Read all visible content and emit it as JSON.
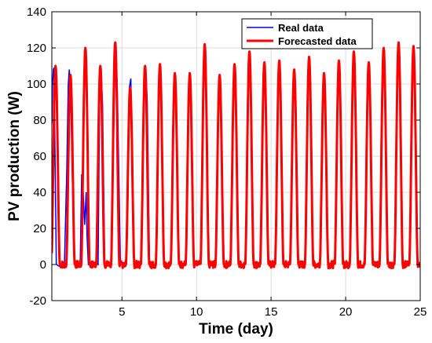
{
  "chart_data": {
    "type": "line",
    "title": "",
    "xlabel": "Time (day)",
    "ylabel": "PV production (W)",
    "xlim": [
      0.3,
      25
    ],
    "ylim": [
      -20,
      140
    ],
    "x_ticks": [
      5,
      10,
      15,
      20,
      25
    ],
    "y_ticks": [
      -20,
      0,
      20,
      40,
      60,
      80,
      100,
      120,
      140
    ],
    "grid": true,
    "legend_position": "top-right",
    "series": [
      {
        "name": "Real data",
        "color": "#0000ff",
        "points": [
          [
            0.3,
            78
          ],
          [
            0.35,
            100
          ],
          [
            0.4,
            108
          ],
          [
            0.45,
            109
          ],
          [
            0.6,
            0
          ],
          [
            0.8,
            -1
          ],
          [
            1.0,
            0
          ],
          [
            1.15,
            1
          ],
          [
            1.3,
            52
          ],
          [
            1.4,
            100
          ],
          [
            1.47,
            108
          ],
          [
            1.55,
            100
          ],
          [
            1.68,
            45
          ],
          [
            1.8,
            0
          ],
          [
            2.0,
            -1
          ],
          [
            2.2,
            0
          ],
          [
            2.3,
            50
          ],
          [
            2.4,
            40
          ],
          [
            2.5,
            22
          ],
          [
            2.6,
            40
          ],
          [
            2.66,
            16
          ],
          [
            2.75,
            0
          ],
          [
            3.0,
            0
          ],
          [
            3.2,
            1
          ],
          [
            3.4,
            0
          ],
          [
            3.5,
            90
          ],
          [
            3.6,
            110
          ],
          [
            3.7,
            88
          ],
          [
            3.85,
            0
          ],
          [
            4.0,
            0
          ],
          [
            4.3,
            0
          ],
          [
            4.5,
            95
          ],
          [
            4.6,
            123
          ],
          [
            4.7,
            95
          ],
          [
            4.9,
            0
          ],
          [
            5.1,
            1
          ],
          [
            5.3,
            0
          ],
          [
            5.4,
            35
          ],
          [
            5.5,
            98
          ],
          [
            5.6,
            103
          ],
          [
            5.7,
            50
          ],
          [
            5.8,
            0
          ],
          [
            6.0,
            -1
          ],
          [
            6.3,
            0
          ],
          [
            6.5,
            92
          ],
          [
            6.6,
            110
          ],
          [
            6.7,
            90
          ],
          [
            6.85,
            0
          ],
          [
            7.0,
            0
          ]
        ]
      },
      {
        "name": "Forecasted data",
        "color": "#ff0000",
        "daily_peaks": [
          110,
          105,
          120,
          110,
          123,
          98,
          110,
          111,
          106,
          106,
          122,
          105,
          111,
          118,
          112,
          113,
          108,
          115,
          106,
          113,
          118,
          112,
          120,
          123,
          121
        ],
        "peak_day_offset": 0.55,
        "baseline": 0
      }
    ]
  }
}
